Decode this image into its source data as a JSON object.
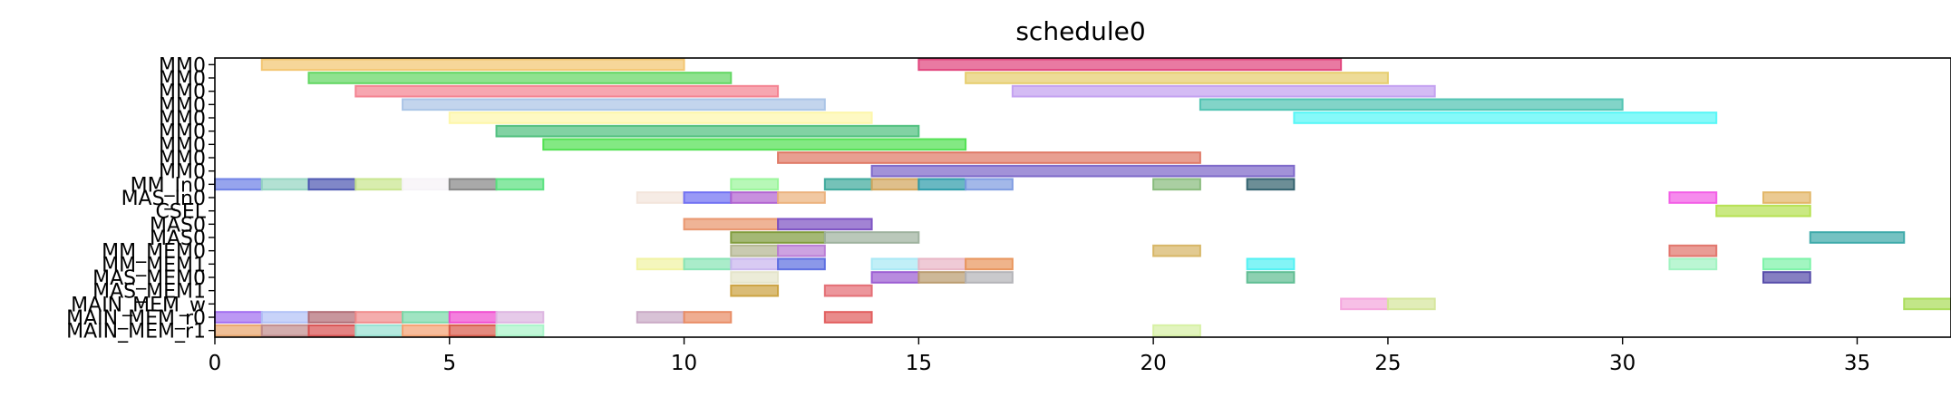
{
  "chart_data": {
    "type": "gantt",
    "title": "schedule0",
    "xlim": [
      0,
      37
    ],
    "x_ticks": [
      0,
      5,
      10,
      15,
      20,
      25,
      30,
      35
    ],
    "x_tick_labels": [
      "0",
      "5",
      "10",
      "15",
      "20",
      "25",
      "30",
      "35"
    ],
    "rows": [
      "MM0",
      "MM0",
      "MM0",
      "MM0",
      "MM0",
      "MM0",
      "MM0",
      "MM0",
      "MM0",
      "MM_In0",
      "MAS_In0",
      "CSEL",
      "MAS0",
      "MAS0",
      "MM_MEM0",
      "MM_MEM1",
      "MAS_MEM0",
      "MAS_MEM1",
      "MAIN_MEM_w",
      "MAIN_MEM_r0",
      "MAIN_MEM_r1"
    ],
    "tasks": [
      {
        "row": 0,
        "start": 1,
        "end": 10,
        "color": "#f2c46e"
      },
      {
        "row": 0,
        "start": 15,
        "end": 24,
        "color": "#e0417a"
      },
      {
        "row": 1,
        "start": 2,
        "end": 11,
        "color": "#5fd65f"
      },
      {
        "row": 1,
        "start": 16,
        "end": 25,
        "color": "#e6cc6b"
      },
      {
        "row": 2,
        "start": 3,
        "end": 12,
        "color": "#f3808e"
      },
      {
        "row": 2,
        "start": 17,
        "end": 26,
        "color": "#c29ef0"
      },
      {
        "row": 3,
        "start": 4,
        "end": 13,
        "color": "#a9c3e6"
      },
      {
        "row": 3,
        "start": 21,
        "end": 30,
        "color": "#4dc2b0"
      },
      {
        "row": 4,
        "start": 5,
        "end": 14,
        "color": "#fdf7a9"
      },
      {
        "row": 4,
        "start": 23,
        "end": 32,
        "color": "#52f7f7"
      },
      {
        "row": 5,
        "start": 6,
        "end": 15,
        "color": "#4cbf7c"
      },
      {
        "row": 6,
        "start": 7,
        "end": 16,
        "color": "#4ee04e"
      },
      {
        "row": 7,
        "start": 12,
        "end": 21,
        "color": "#de7662"
      },
      {
        "row": 8,
        "start": 14,
        "end": 23,
        "color": "#7a64c8"
      },
      {
        "row": 9,
        "start": 0,
        "end": 1,
        "color": "#6a7ee6"
      },
      {
        "row": 9,
        "start": 1,
        "end": 2,
        "color": "#93d4c0"
      },
      {
        "row": 9,
        "start": 2,
        "end": 3,
        "color": "#4a54b0"
      },
      {
        "row": 9,
        "start": 3,
        "end": 4,
        "color": "#c7e58c"
      },
      {
        "row": 9,
        "start": 4,
        "end": 5,
        "color": "#f6f2f7"
      },
      {
        "row": 9,
        "start": 5,
        "end": 6,
        "color": "#858585"
      },
      {
        "row": 9,
        "start": 6,
        "end": 7,
        "color": "#58e07e"
      },
      {
        "row": 9,
        "start": 11,
        "end": 12,
        "color": "#98f598"
      },
      {
        "row": 9,
        "start": 13,
        "end": 14,
        "color": "#3aa89a"
      },
      {
        "row": 9,
        "start": 14,
        "end": 15,
        "color": "#d1a45a"
      },
      {
        "row": 9,
        "start": 15,
        "end": 16,
        "color": "#2a9aa8"
      },
      {
        "row": 9,
        "start": 16,
        "end": 17,
        "color": "#7c9ae0"
      },
      {
        "row": 9,
        "start": 20,
        "end": 21,
        "color": "#86ba7a"
      },
      {
        "row": 9,
        "start": 22,
        "end": 23,
        "color": "#2d5e6a"
      },
      {
        "row": 10,
        "start": 9,
        "end": 10,
        "color": "#f2e4da"
      },
      {
        "row": 10,
        "start": 10,
        "end": 11,
        "color": "#6e6ef2"
      },
      {
        "row": 10,
        "start": 11,
        "end": 12,
        "color": "#b061d0"
      },
      {
        "row": 10,
        "start": 12,
        "end": 13,
        "color": "#ebb07a"
      },
      {
        "row": 10,
        "start": 31,
        "end": 32,
        "color": "#f25ae6"
      },
      {
        "row": 10,
        "start": 33,
        "end": 34,
        "color": "#e2b464"
      },
      {
        "row": 11,
        "start": 32,
        "end": 34,
        "color": "#b4e04e"
      },
      {
        "row": 12,
        "start": 10,
        "end": 12,
        "color": "#e8946a"
      },
      {
        "row": 12,
        "start": 12,
        "end": 14,
        "color": "#7a4ec2"
      },
      {
        "row": 13,
        "start": 11,
        "end": 13,
        "color": "#7e9a3a"
      },
      {
        "row": 13,
        "start": 13,
        "end": 15,
        "color": "#9cb09c"
      },
      {
        "row": 13,
        "start": 34,
        "end": 36,
        "color": "#3aa8a8"
      },
      {
        "row": 14,
        "start": 11,
        "end": 12,
        "color": "#b2b48e"
      },
      {
        "row": 14,
        "start": 12,
        "end": 13,
        "color": "#b87ad4"
      },
      {
        "row": 14,
        "start": 20,
        "end": 21,
        "color": "#d6b462"
      },
      {
        "row": 14,
        "start": 31,
        "end": 32,
        "color": "#e07268"
      },
      {
        "row": 15,
        "start": 9,
        "end": 10,
        "color": "#f0f2a0"
      },
      {
        "row": 15,
        "start": 10,
        "end": 11,
        "color": "#86e4b4"
      },
      {
        "row": 15,
        "start": 11,
        "end": 12,
        "color": "#c8b4ee"
      },
      {
        "row": 15,
        "start": 12,
        "end": 13,
        "color": "#5a6ce0"
      },
      {
        "row": 15,
        "start": 14,
        "end": 15,
        "color": "#a6e8f4"
      },
      {
        "row": 15,
        "start": 15,
        "end": 16,
        "color": "#e8b4c4"
      },
      {
        "row": 15,
        "start": 16,
        "end": 17,
        "color": "#e8945a"
      },
      {
        "row": 15,
        "start": 22,
        "end": 23,
        "color": "#4ef0f2"
      },
      {
        "row": 15,
        "start": 31,
        "end": 32,
        "color": "#9ef2c0"
      },
      {
        "row": 15,
        "start": 33,
        "end": 34,
        "color": "#7af2a6"
      },
      {
        "row": 16,
        "start": 11,
        "end": 12,
        "color": "#e4e4c8"
      },
      {
        "row": 16,
        "start": 14,
        "end": 15,
        "color": "#9a5ad2"
      },
      {
        "row": 16,
        "start": 15,
        "end": 16,
        "color": "#b89a6c"
      },
      {
        "row": 16,
        "start": 16,
        "end": 17,
        "color": "#b2b2b6"
      },
      {
        "row": 16,
        "start": 22,
        "end": 23,
        "color": "#5cbc90"
      },
      {
        "row": 16,
        "start": 33,
        "end": 34,
        "color": "#5248a8"
      },
      {
        "row": 17,
        "start": 11,
        "end": 12,
        "color": "#caa03c"
      },
      {
        "row": 17,
        "start": 13,
        "end": 14,
        "color": "#e46a72"
      },
      {
        "row": 18,
        "start": 24,
        "end": 25,
        "color": "#f4a4dc"
      },
      {
        "row": 18,
        "start": 25,
        "end": 26,
        "color": "#d4e69a"
      },
      {
        "row": 18,
        "start": 36,
        "end": 37,
        "color": "#a8dc56"
      },
      {
        "row": 19,
        "start": 0,
        "end": 1,
        "color": "#a06cf0"
      },
      {
        "row": 19,
        "start": 1,
        "end": 2,
        "color": "#b0c0f6"
      },
      {
        "row": 19,
        "start": 2,
        "end": 3,
        "color": "#b06a74"
      },
      {
        "row": 19,
        "start": 3,
        "end": 4,
        "color": "#f08a8a"
      },
      {
        "row": 19,
        "start": 4,
        "end": 5,
        "color": "#78d8a8"
      },
      {
        "row": 19,
        "start": 5,
        "end": 6,
        "color": "#f04ad0"
      },
      {
        "row": 19,
        "start": 6,
        "end": 7,
        "color": "#dcb4e0"
      },
      {
        "row": 19,
        "start": 9,
        "end": 10,
        "color": "#c8a8c4"
      },
      {
        "row": 19,
        "start": 10,
        "end": 11,
        "color": "#e88a62"
      },
      {
        "row": 19,
        "start": 13,
        "end": 14,
        "color": "#e05a5a"
      },
      {
        "row": 20,
        "start": 0,
        "end": 1,
        "color": "#e8a46a"
      },
      {
        "row": 20,
        "start": 1,
        "end": 2,
        "color": "#c08a8a"
      },
      {
        "row": 20,
        "start": 2,
        "end": 3,
        "color": "#d84e4e"
      },
      {
        "row": 20,
        "start": 3,
        "end": 4,
        "color": "#96e0d0"
      },
      {
        "row": 20,
        "start": 4,
        "end": 5,
        "color": "#f4a070"
      },
      {
        "row": 20,
        "start": 5,
        "end": 6,
        "color": "#d85848"
      },
      {
        "row": 20,
        "start": 6,
        "end": 7,
        "color": "#a8f4c8"
      },
      {
        "row": 20,
        "start": 20,
        "end": 21,
        "color": "#d6f0a2"
      }
    ]
  }
}
